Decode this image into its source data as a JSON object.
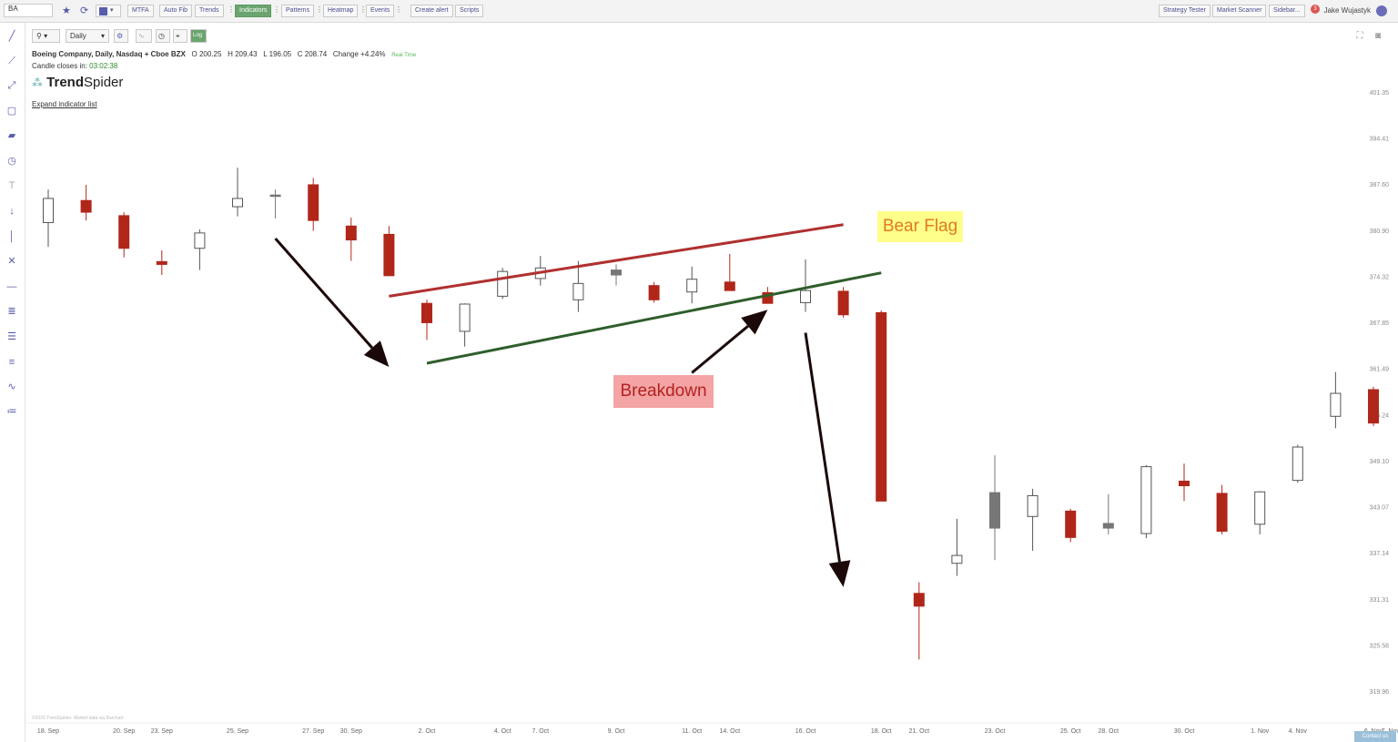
{
  "topbar": {
    "symbol": "BA",
    "buttons": [
      "MTFA",
      "Auto Fib",
      "Trends",
      "Indicators",
      "Patterns",
      "Heatmap",
      "Events",
      "Create alert",
      "Scripts"
    ],
    "right_buttons": [
      "Strategy Tester",
      "Market Scanner",
      "Sidebar..."
    ],
    "user_name": "Jake Wujastyk",
    "notifications": "3"
  },
  "chart_toolbar": {
    "timeframe": "Daily",
    "log_label": "Log"
  },
  "info": {
    "title": "Boeing Company, Daily, Nasdaq + Cboe BZX",
    "open": "O 200.25",
    "high": "H 209.43",
    "low": "L 196.05",
    "close": "C 208.74",
    "change": "Change +4.24%",
    "realtime": "Real Time",
    "candle_label": "Candle closes in:",
    "countdown": "03:02:38"
  },
  "brand": {
    "logo_bold": "Trend",
    "logo_light": "Spider"
  },
  "expand_link": "Expand indicator list",
  "copyright": "©2020 TrendSpider. Market data via Barchart.",
  "contact_label": "Contact us",
  "annotations": {
    "bear_flag": "Bear Flag",
    "breakdown": "Breakdown"
  },
  "colors": {
    "down": "#b0271a",
    "up_border": "#555555",
    "neutral": "#777777",
    "upper_line": "#b03030",
    "lower_line": "#2e5e2a",
    "arrow": "#1b0808"
  },
  "chart_data": {
    "type": "candlestick",
    "y_ticks": [
      401.35,
      394.41,
      387.6,
      380.9,
      374.32,
      367.85,
      361.49,
      355.24,
      349.1,
      343.07,
      337.14,
      331.31,
      325.58,
      319.96
    ],
    "y_tick_labels": [
      "401.35",
      "394.41",
      "387.60",
      "380.90",
      "374.32",
      "367.85",
      "361.49",
      "355.24",
      "349.10",
      "343.07",
      "337.14",
      "331.31",
      "325.58",
      "319.96"
    ],
    "x_labels": [
      "18. Sep",
      "20. Sep",
      "23. Sep",
      "25. Sep",
      "27. Sep",
      "30. Sep",
      "2. Oct",
      "4. Oct",
      "7. Oct",
      "9. Oct",
      "11. Oct",
      "14. Oct",
      "16. Oct",
      "18. Oct",
      "21. Oct",
      "23. Oct",
      "25. Oct",
      "28. Oct",
      "30. Oct",
      "1. Nov",
      "4. Nov",
      "6. Nov",
      "7. Nov"
    ],
    "candles": [
      {
        "date": "18. Sep",
        "o": 382.0,
        "h": 386.8,
        "l": 378.5,
        "c": 385.5,
        "dir": "up"
      },
      {
        "date": "19. Sep",
        "o": 385.2,
        "h": 387.5,
        "l": 382.3,
        "c": 383.5,
        "dir": "down"
      },
      {
        "date": "20. Sep",
        "o": 383.0,
        "h": 383.5,
        "l": 377.0,
        "c": 378.3,
        "dir": "down"
      },
      {
        "date": "23. Sep",
        "o": 376.0,
        "h": 378.0,
        "l": 374.5,
        "c": 376.4,
        "dir": "down"
      },
      {
        "date": "24. Sep",
        "o": 378.3,
        "h": 381.0,
        "l": 375.2,
        "c": 380.5,
        "dir": "up"
      },
      {
        "date": "25. Sep",
        "o": 384.3,
        "h": 390.0,
        "l": 382.9,
        "c": 385.5,
        "dir": "up"
      },
      {
        "date": "26. Sep",
        "o": 386.0,
        "h": 386.8,
        "l": 382.6,
        "c": 386.0,
        "dir": "neutral"
      },
      {
        "date": "27. Sep",
        "o": 387.5,
        "h": 388.5,
        "l": 380.8,
        "c": 382.3,
        "dir": "down"
      },
      {
        "date": "30. Sep",
        "o": 381.5,
        "h": 382.7,
        "l": 376.5,
        "c": 379.5,
        "dir": "down"
      },
      {
        "date": "1. Oct",
        "o": 380.3,
        "h": 381.5,
        "l": 374.4,
        "c": 374.4,
        "dir": "down"
      },
      {
        "date": "2. Oct",
        "o": 370.5,
        "h": 371.0,
        "l": 365.4,
        "c": 367.8,
        "dir": "down"
      },
      {
        "date": "3. Oct",
        "o": 366.6,
        "h": 370.5,
        "l": 364.5,
        "c": 370.4,
        "dir": "up"
      },
      {
        "date": "4. Oct",
        "o": 371.5,
        "h": 375.5,
        "l": 371.1,
        "c": 375.0,
        "dir": "up"
      },
      {
        "date": "7. Oct",
        "o": 374.0,
        "h": 377.2,
        "l": 373.0,
        "c": 375.5,
        "dir": "up"
      },
      {
        "date": "8. Oct",
        "o": 371.0,
        "h": 376.5,
        "l": 369.3,
        "c": 373.3,
        "dir": "up"
      },
      {
        "date": "9. Oct",
        "o": 374.5,
        "h": 376.0,
        "l": 373.0,
        "c": 375.2,
        "dir": "neutral"
      },
      {
        "date": "10. Oct",
        "o": 373.0,
        "h": 373.5,
        "l": 370.6,
        "c": 371.0,
        "dir": "down"
      },
      {
        "date": "11. Oct",
        "o": 372.1,
        "h": 375.7,
        "l": 370.5,
        "c": 373.9,
        "dir": "up"
      },
      {
        "date": "14. Oct",
        "o": 373.5,
        "h": 377.5,
        "l": 372.5,
        "c": 372.3,
        "dir": "down"
      },
      {
        "date": "15. Oct",
        "o": 372.0,
        "h": 372.8,
        "l": 370.6,
        "c": 370.5,
        "dir": "down"
      },
      {
        "date": "16. Oct",
        "o": 370.6,
        "h": 376.7,
        "l": 369.3,
        "c": 372.3,
        "dir": "up"
      },
      {
        "date": "17. Oct",
        "o": 372.2,
        "h": 372.8,
        "l": 368.5,
        "c": 368.9,
        "dir": "down"
      },
      {
        "date": "18. Oct",
        "o": 369.2,
        "h": 369.5,
        "l": 343.8,
        "c": 343.8,
        "dir": "down"
      },
      {
        "date": "21. Oct",
        "o": 332.0,
        "h": 333.4,
        "l": 323.8,
        "c": 330.4,
        "dir": "down"
      },
      {
        "date": "22. Oct",
        "o": 335.8,
        "h": 341.5,
        "l": 334.2,
        "c": 336.8,
        "dir": "up"
      },
      {
        "date": "23. Oct",
        "o": 344.9,
        "h": 349.8,
        "l": 336.2,
        "c": 340.3,
        "dir": "neutral"
      },
      {
        "date": "24. Oct",
        "o": 341.8,
        "h": 345.4,
        "l": 337.4,
        "c": 344.5,
        "dir": "up"
      },
      {
        "date": "25. Oct",
        "o": 342.5,
        "h": 342.8,
        "l": 338.5,
        "c": 339.1,
        "dir": "down"
      },
      {
        "date": "28. Oct",
        "o": 340.9,
        "h": 344.7,
        "l": 339.5,
        "c": 340.3,
        "dir": "neutral"
      },
      {
        "date": "29. Oct",
        "o": 339.6,
        "h": 348.5,
        "l": 339.0,
        "c": 348.3,
        "dir": "up"
      },
      {
        "date": "30. Oct",
        "o": 346.4,
        "h": 348.7,
        "l": 343.8,
        "c": 345.8,
        "dir": "down"
      },
      {
        "date": "31. Oct",
        "o": 344.8,
        "h": 345.9,
        "l": 339.5,
        "c": 339.9,
        "dir": "down"
      },
      {
        "date": "1. Nov",
        "o": 340.8,
        "h": 345.1,
        "l": 339.5,
        "c": 345.0,
        "dir": "up"
      },
      {
        "date": "4. Nov",
        "o": 346.5,
        "h": 351.2,
        "l": 346.2,
        "c": 350.9,
        "dir": "up"
      },
      {
        "date": "5. Nov",
        "o": 355.0,
        "h": 361.0,
        "l": 353.4,
        "c": 358.1,
        "dir": "up"
      },
      {
        "date": "6. Nov",
        "o": 358.6,
        "h": 359.0,
        "l": 353.7,
        "c": 354.1,
        "dir": "down"
      }
    ],
    "trendlines": [
      {
        "name": "upper",
        "from": {
          "date": "1. Oct",
          "price": 371.5
        },
        "to": {
          "date": "17. Oct",
          "price": 381.7
        }
      },
      {
        "name": "lower",
        "from": {
          "date": "2. Oct",
          "price": 362.2
        },
        "to": {
          "date": "18. Oct",
          "price": 374.8
        }
      }
    ],
    "arrows": [
      {
        "from": {
          "date": "26. Sep",
          "price": 379.7
        },
        "to": {
          "date": "1. Oct",
          "price": 361.7
        }
      },
      {
        "from": {
          "date": "11. Oct",
          "price": 360.9
        },
        "to": {
          "date": "15. Oct",
          "price": 369.6
        }
      },
      {
        "from": {
          "date": "16. Oct",
          "price": 366.4
        },
        "to": {
          "date": "17. Oct",
          "price": 332.8
        }
      }
    ]
  }
}
